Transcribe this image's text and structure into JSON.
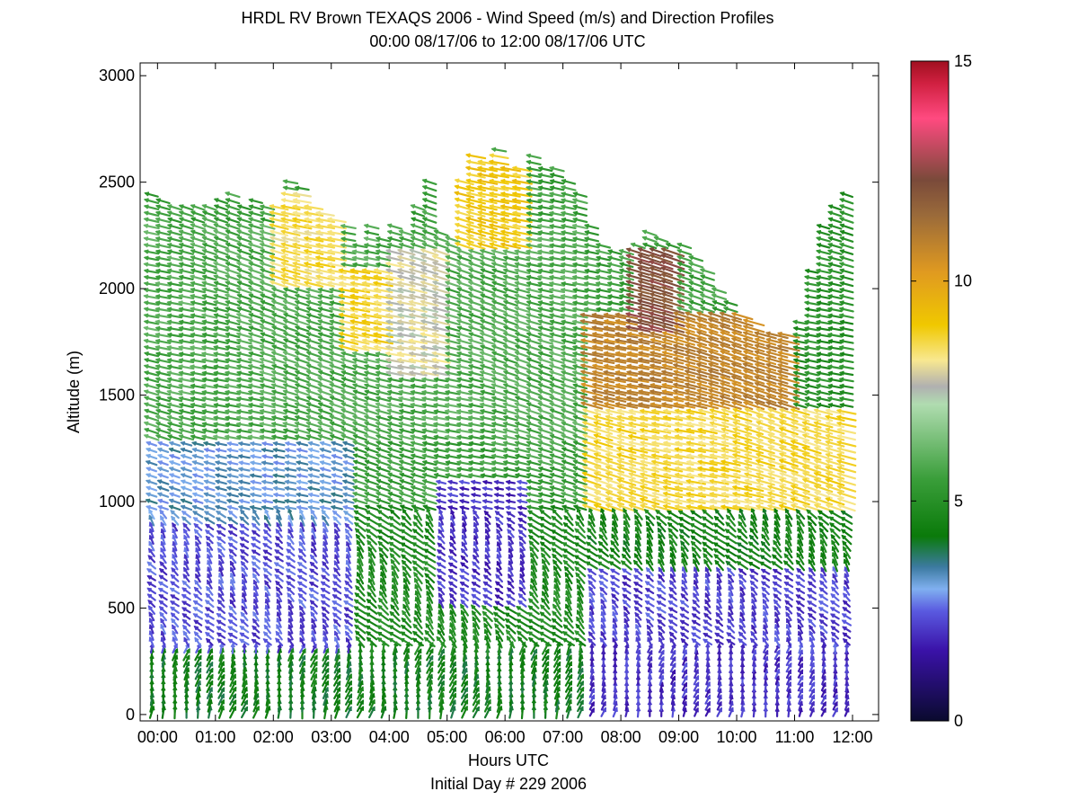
{
  "chart_data": {
    "type": "quiver",
    "title": "HRDL RV Brown TEXAQS 2006 - Wind Speed (m/s) and Direction Profiles",
    "subtitle": "00:00 08/17/06 to 12:00 08/17/06  UTC",
    "xlabel": "Hours UTC",
    "xlabel2": "Initial Day # 229  2006",
    "ylabel": "Altitude (m)",
    "xlim": [
      -0.3,
      12.45
    ],
    "ylim": [
      -30,
      3060
    ],
    "x_ticks": [
      0,
      1,
      2,
      3,
      4,
      5,
      6,
      7,
      8,
      9,
      10,
      11,
      12
    ],
    "x_tick_labels": [
      "00:00",
      "01:00",
      "02:00",
      "03:00",
      "04:00",
      "05:00",
      "06:00",
      "07:00",
      "08:00",
      "09:00",
      "10:00",
      "11:00",
      "12:00"
    ],
    "y_ticks": [
      0,
      500,
      1000,
      1500,
      2000,
      2500,
      3000
    ],
    "y_tick_labels": [
      "0",
      "500",
      "1000",
      "1500",
      "2000",
      "2500",
      "3000"
    ],
    "grid": false,
    "colorbar": {
      "range": [
        0,
        15
      ],
      "ticks": [
        0,
        5,
        10,
        15
      ],
      "tick_labels": [
        "0",
        "5",
        "10",
        "15"
      ],
      "colormap": [
        {
          "v": 0.0,
          "color": "#0a0a2e"
        },
        {
          "v": 1.6,
          "color": "#3a12a8"
        },
        {
          "v": 2.5,
          "color": "#5a5ae0"
        },
        {
          "v": 3.0,
          "color": "#80b0f0"
        },
        {
          "v": 3.5,
          "color": "#3c7aa0"
        },
        {
          "v": 4.2,
          "color": "#0a7a0a"
        },
        {
          "v": 5.5,
          "color": "#3a9e3a"
        },
        {
          "v": 7.2,
          "color": "#b0dcb0"
        },
        {
          "v": 7.6,
          "color": "#b0b0b0"
        },
        {
          "v": 8.2,
          "color": "#f8e890"
        },
        {
          "v": 9.0,
          "color": "#f0c800"
        },
        {
          "v": 10.2,
          "color": "#e09a20"
        },
        {
          "v": 11.5,
          "color": "#9a6a3a"
        },
        {
          "v": 12.3,
          "color": "#7a4a3a"
        },
        {
          "v": 13.7,
          "color": "#ff4a80"
        },
        {
          "v": 14.5,
          "color": "#d02040"
        },
        {
          "v": 15.0,
          "color": "#a01020"
        }
      ]
    },
    "profile_hours": [
      -0.1,
      0.1,
      0.3,
      0.5,
      0.7,
      0.9,
      1.1,
      1.3,
      1.5,
      1.7,
      1.9,
      2.1,
      2.3,
      2.5,
      2.7,
      2.9,
      3.1,
      3.3,
      3.5,
      3.7,
      3.9,
      4.1,
      4.3,
      4.5,
      4.7,
      4.9,
      5.1,
      5.3,
      5.5,
      5.7,
      5.9,
      6.1,
      6.3,
      6.5,
      6.7,
      6.9,
      7.1,
      7.3,
      7.5,
      7.7,
      7.9,
      8.1,
      8.3,
      8.5,
      8.7,
      8.9,
      9.1,
      9.3,
      9.5,
      9.7,
      9.9,
      10.1,
      10.3,
      10.5,
      10.7,
      10.9,
      11.1,
      11.3,
      11.5,
      11.7,
      11.9
    ],
    "profile_top_m": [
      2440,
      2430,
      2400,
      2380,
      2400,
      2380,
      2420,
      2460,
      2400,
      2420,
      2390,
      2380,
      2500,
      2480,
      2400,
      2350,
      2320,
      2300,
      2200,
      2300,
      2250,
      2300,
      2280,
      2400,
      2500,
      2260,
      2250,
      2500,
      2620,
      2600,
      2650,
      2560,
      2580,
      2620,
      2580,
      2560,
      2500,
      2450,
      2300,
      2200,
      2180,
      2180,
      2220,
      2260,
      2230,
      2200,
      2200,
      2150,
      2100,
      2000,
      1950,
      1880,
      1850,
      1800,
      1800,
      1780,
      1850,
      2100,
      2300,
      2400,
      2450
    ],
    "profile_bottom_m": [
      0,
      0,
      0,
      0,
      0,
      0,
      0,
      0,
      0,
      0,
      0,
      0,
      0,
      0,
      0,
      0,
      0,
      0,
      0,
      0,
      0,
      0,
      0,
      0,
      0,
      0,
      0,
      0,
      0,
      0,
      0,
      0,
      0,
      0,
      0,
      0,
      0,
      0,
      0,
      0,
      0,
      0,
      0,
      0,
      0,
      0,
      0,
      0,
      0,
      0,
      0,
      0,
      0,
      0,
      0,
      0,
      0,
      0,
      0,
      0,
      0
    ],
    "level_spacing_m": 30,
    "speed_regimes": [
      {
        "hours": [
          -0.2,
          7.5
        ],
        "z_m": [
          0,
          300
        ],
        "speed_mps": 4.3
      },
      {
        "hours": [
          -0.2,
          3.5
        ],
        "z_m": [
          300,
          900
        ],
        "speed_mps": 2.3
      },
      {
        "hours": [
          -0.2,
          3.5
        ],
        "z_m": [
          900,
          1300
        ],
        "speed_mps": 3.2
      },
      {
        "hours": [
          3.5,
          7.5
        ],
        "z_m": [
          300,
          1000
        ],
        "speed_mps": 4.8
      },
      {
        "hours": [
          4.8,
          6.4
        ],
        "z_m": [
          500,
          1100
        ],
        "speed_mps": 2.0
      },
      {
        "hours": [
          -0.2,
          7.5
        ],
        "z_m": [
          1300,
          2300
        ],
        "speed_mps": 5.8
      },
      {
        "hours": [
          2.0,
          3.2
        ],
        "z_m": [
          2000,
          2450
        ],
        "speed_mps": 8.5
      },
      {
        "hours": [
          3.2,
          4.0
        ],
        "z_m": [
          1700,
          2100
        ],
        "speed_mps": 8.7
      },
      {
        "hours": [
          4.0,
          5.0
        ],
        "z_m": [
          1600,
          2200
        ],
        "speed_mps": 7.8
      },
      {
        "hours": [
          5.2,
          6.4
        ],
        "z_m": [
          2200,
          2650
        ],
        "speed_mps": 9.0
      },
      {
        "hours": [
          7.5,
          12.0
        ],
        "z_m": [
          0,
          300
        ],
        "speed_mps": 2.0
      },
      {
        "hours": [
          7.5,
          12.0
        ],
        "z_m": [
          300,
          700
        ],
        "speed_mps": 2.2
      },
      {
        "hours": [
          7.5,
          12.0
        ],
        "z_m": [
          700,
          950
        ],
        "speed_mps": 4.5
      },
      {
        "hours": [
          7.5,
          12.0
        ],
        "z_m": [
          950,
          1450
        ],
        "speed_mps": 8.6
      },
      {
        "hours": [
          7.5,
          11.0
        ],
        "z_m": [
          1450,
          1900
        ],
        "speed_mps": 10.8
      },
      {
        "hours": [
          8.2,
          9.0
        ],
        "z_m": [
          1800,
          2200
        ],
        "speed_mps": 12.2
      },
      {
        "hours": [
          11.0,
          12.0
        ],
        "z_m": [
          1450,
          2500
        ],
        "speed_mps": 5.0
      }
    ]
  }
}
